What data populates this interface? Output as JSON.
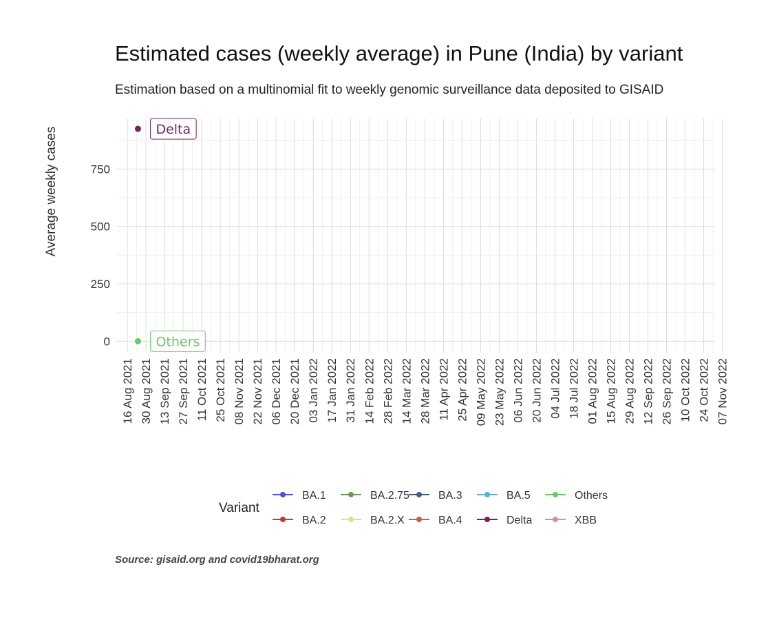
{
  "chart_data": {
    "type": "line",
    "title": "Estimated cases (weekly average) in Pune (India) by variant",
    "subtitle": "Estimation based on a multinomial fit to weekly genomic surveillance data deposited to GISAID",
    "xlabel": "",
    "ylabel": "Average weekly cases",
    "ylim": [
      -50,
      970
    ],
    "y_ticks": [
      0,
      250,
      500,
      750
    ],
    "x_ticks": [
      "16 Aug 2021",
      "30 Aug 2021",
      "13 Sep 2021",
      "27 Sep 2021",
      "11 Oct 2021",
      "25 Oct 2021",
      "08 Nov 2021",
      "22 Nov 2021",
      "06 Dec 2021",
      "20 Dec 2021",
      "03 Jan 2022",
      "17 Jan 2022",
      "31 Jan 2022",
      "14 Feb 2022",
      "28 Feb 2022",
      "14 Mar 2022",
      "28 Mar 2022",
      "11 Apr 2022",
      "25 Apr 2022",
      "09 May 2022",
      "23 May 2022",
      "06 Jun 2022",
      "20 Jun 2022",
      "04 Jul 2022",
      "18 Jul 2022",
      "01 Aug 2022",
      "15 Aug 2022",
      "29 Aug 2022",
      "12 Sep 2022",
      "26 Sep 2022",
      "10 Oct 2022",
      "24 Oct 2022",
      "07 Nov 2022"
    ],
    "grid": true,
    "legend": {
      "title": "Variant",
      "position": "bottom",
      "items": [
        {
          "name": "BA.1",
          "color": "#4b4bf0"
        },
        {
          "name": "BA.2.75",
          "color": "#6a9a58"
        },
        {
          "name": "BA.3",
          "color": "#3f5f85"
        },
        {
          "name": "BA.5",
          "color": "#5aaedf"
        },
        {
          "name": "Others",
          "color": "#66cc66"
        },
        {
          "name": "BA.2",
          "color": "#c9392e"
        },
        {
          "name": "BA.2.X",
          "color": "#ecdc80"
        },
        {
          "name": "BA.4",
          "color": "#c0643a"
        },
        {
          "name": "Delta",
          "color": "#7a1f5c"
        },
        {
          "name": "XBB",
          "color": "#d98ca6"
        }
      ]
    },
    "series": [
      {
        "name": "Delta",
        "color": "#7a1f5c",
        "points": [
          {
            "x": "2021-08-24",
            "y": 925
          }
        ]
      },
      {
        "name": "Others",
        "color": "#66cc66",
        "points": [
          {
            "x": "2021-08-24",
            "y": 0
          }
        ]
      }
    ],
    "end_labels": [
      {
        "text": "Delta",
        "series": "Delta"
      },
      {
        "text": "Others",
        "series": "Others"
      }
    ],
    "caption": "Source: gisaid.org and covid19bharat.org"
  }
}
